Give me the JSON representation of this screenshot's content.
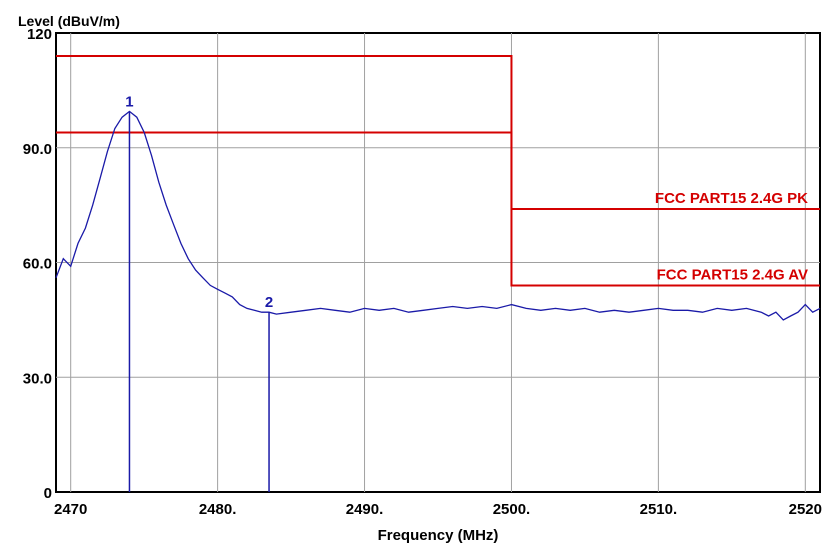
{
  "chart_data": {
    "type": "line",
    "ylabel": "Level (dBuV/m)",
    "xlabel": "Frequency (MHz)",
    "xlim": [
      2469,
      2521
    ],
    "ylim": [
      0,
      120
    ],
    "x_ticks": [
      {
        "value": 2470,
        "label": "2470"
      },
      {
        "value": 2480,
        "label": "2480."
      },
      {
        "value": 2490,
        "label": "2490."
      },
      {
        "value": 2500,
        "label": "2500."
      },
      {
        "value": 2510,
        "label": "2510."
      },
      {
        "value": 2520,
        "label": "2520"
      }
    ],
    "y_ticks": [
      {
        "value": 0,
        "label": "0"
      },
      {
        "value": 30,
        "label": "30.0"
      },
      {
        "value": 60,
        "label": "60.0"
      },
      {
        "value": 90,
        "label": "90.0"
      },
      {
        "value": 120,
        "label": "120"
      }
    ],
    "grid": true,
    "limit_lines": [
      {
        "label": "FCC PART15 2.4G PK",
        "color": "#d40000",
        "segments": [
          {
            "x": [
              2469,
              2500
            ],
            "y": 114
          },
          {
            "x": [
              2500,
              2521
            ],
            "y": 74
          }
        ]
      },
      {
        "label": "FCC PART15 2.4G AV",
        "color": "#d40000",
        "segments": [
          {
            "x": [
              2469,
              2500
            ],
            "y": 94
          },
          {
            "x": [
              2500,
              2521
            ],
            "y": 54
          }
        ]
      }
    ],
    "markers": [
      {
        "label": "1",
        "x": 2474.0,
        "y": 99.5
      },
      {
        "label": "2",
        "x": 2483.5,
        "y": 47.0
      }
    ],
    "series": [
      {
        "color": "#1a1aa8",
        "x": [
          2469,
          2469.5,
          2470,
          2470.5,
          2471,
          2471.5,
          2472,
          2472.5,
          2473,
          2473.5,
          2474,
          2474.5,
          2475,
          2475.5,
          2476,
          2476.5,
          2477,
          2477.5,
          2478,
          2478.5,
          2479,
          2479.5,
          2480,
          2480.5,
          2481,
          2481.5,
          2482,
          2482.5,
          2483,
          2483.5,
          2484,
          2485,
          2486,
          2487,
          2488,
          2489,
          2490,
          2491,
          2492,
          2493,
          2494,
          2495,
          2496,
          2497,
          2498,
          2499,
          2500,
          2501,
          2502,
          2503,
          2504,
          2505,
          2506,
          2507,
          2508,
          2509,
          2510,
          2511,
          2512,
          2513,
          2514,
          2515,
          2516,
          2517,
          2517.5,
          2518,
          2518.5,
          2519,
          2519.5,
          2520,
          2520.5,
          2521
        ],
        "y": [
          56,
          61,
          59,
          65,
          69,
          75,
          82,
          89,
          95,
          98,
          99.5,
          98,
          94,
          88,
          81,
          75,
          70,
          65,
          61,
          58,
          56,
          54,
          53,
          52,
          51,
          49,
          48,
          47.5,
          47,
          47,
          46.5,
          47,
          47.5,
          48,
          47.5,
          47,
          48,
          47.5,
          48,
          47,
          47.5,
          48,
          48.5,
          48,
          48.5,
          48,
          49,
          48,
          47.5,
          48,
          47.5,
          48,
          47,
          47.5,
          47,
          47.5,
          48,
          47.5,
          47.5,
          47,
          48,
          47.5,
          48,
          47,
          46,
          47,
          45,
          46,
          47,
          49,
          47,
          48
        ]
      }
    ]
  }
}
